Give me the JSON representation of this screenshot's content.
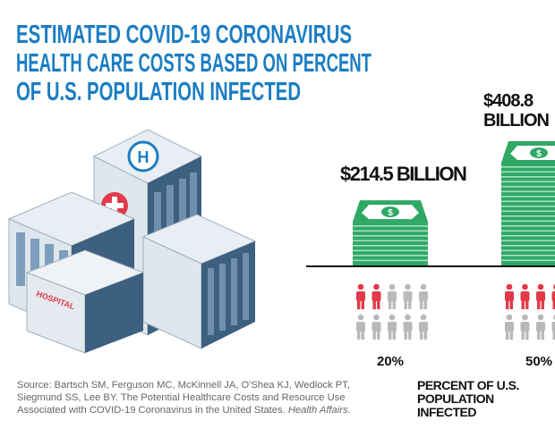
{
  "title_lines": [
    "ESTIMATED COVID-19 CORONAVIRUS",
    "HEALTH CARE COSTS BASED ON PERCENT",
    "OF U.S. POPULATION INFECTED"
  ],
  "hospital_sign": "HOSPITAL",
  "hospital_roof_letter": "H",
  "source": {
    "text": "Source: Bartsch SM, Ferguson MC, McKinnell JA, O'Shea KJ, Wedlock PT, Siegmund SS, Lee BY. The Potential Healthcare Costs and Resource Use Associated with COVID-19 Coronavirus in the United States. ",
    "journal": "Health Affairs."
  },
  "colors": {
    "title": "#1b7dc3",
    "money": "#2fa866",
    "infected": "#e23a48",
    "uninfected": "#b9b9b9"
  },
  "chart_data": {
    "type": "bar",
    "title": "Estimated COVID-19 Coronavirus Health Care Costs Based on Percent of U.S. Population Infected",
    "xlabel": "PERCENT OF U.S. POPULATION INFECTED",
    "ylabel": "Health care costs",
    "categories": [
      "20%",
      "50%"
    ],
    "values": [
      214.5,
      408.8
    ],
    "value_labels": [
      "$214.5 BILLION",
      "$408.8 BILLION"
    ],
    "infected_of_10": [
      2,
      5
    ],
    "units": "billion USD"
  }
}
